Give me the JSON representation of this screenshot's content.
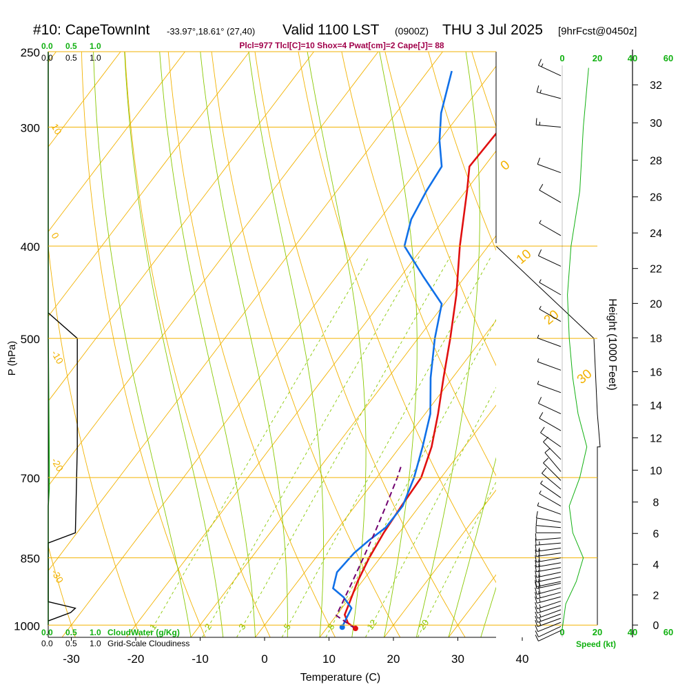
{
  "header": {
    "station": "#10: CapeTownInt",
    "coords": "-33.97°,18.61° (27,40)",
    "valid": "Valid 1100 LST",
    "utc": "(0900Z)",
    "date": "THU 3 Jul 2025",
    "forecast": "[9hrFcst@0450z]",
    "indices": "Plcl=977 Tlcl[C]=10 Shox=4 Pwat[cm]=2 Cape[J]= 88"
  },
  "axes": {
    "x_label": "Temperature (C)",
    "y_label": "P (hPa)",
    "height_label": "Height (1000 Feet)",
    "speed_label": "Speed (kt)",
    "cloudwater_label": "CloudWater (g/Kg)",
    "cloudiness_label": "Grid-Scale Cloudiness"
  },
  "colors": {
    "isobar": "#f2b200",
    "dry_adiabat": "#f2b200",
    "moist_adiabat": "#88c800",
    "mixing_ratio": "#88c800",
    "temperature": "#e01010",
    "dewpoint": "#1070e8",
    "parcel": "#700070",
    "cloudwater": "#10b010",
    "wind": "#000000",
    "indices_text": "#a0004a",
    "speed_text": "#10b010"
  },
  "chart_data": {
    "type": "line",
    "x_axis": {
      "scale": "skew-T",
      "ticks": [
        -30,
        -20,
        -10,
        0,
        10,
        20,
        30,
        40
      ],
      "range": [
        -34,
        37
      ]
    },
    "y_axis": {
      "scale": "log",
      "ticks": [
        250,
        300,
        400,
        500,
        700,
        850,
        1000
      ],
      "range": [
        250,
        1030
      ]
    },
    "height_axis": {
      "ticks": [
        0,
        2,
        4,
        6,
        8,
        10,
        12,
        14,
        16,
        18,
        20,
        22,
        24,
        26,
        28,
        30,
        32
      ]
    },
    "cloud_axis_top": {
      "green": [
        "0.0",
        "0.5",
        "1.0"
      ],
      "black": [
        "0.0",
        "0.5",
        "1.0"
      ]
    },
    "cloud_axis_bottom": {
      "green": [
        "0.0",
        "0.5",
        "1.0"
      ],
      "black": [
        "0.0",
        "0.5",
        "1.0"
      ]
    },
    "speed_axis": {
      "ticks_top": [
        "0",
        "20",
        "40",
        "60"
      ],
      "ticks_bottom": [
        "0",
        "20",
        "40",
        "60"
      ]
    },
    "dry_adiabat_labels": [
      "10",
      "0",
      "-10",
      "-20",
      "-30"
    ],
    "dry_adiabat_right_labels": [
      "0",
      "10",
      "20",
      "30"
    ],
    "mixing_ratio_labels": [
      "1",
      "2",
      "3",
      "5",
      "8",
      "12",
      "20"
    ],
    "series": [
      {
        "name": "temperature",
        "points": [
          [
            1008,
            14.5
          ],
          [
            995,
            12.7
          ],
          [
            975,
            11.2
          ],
          [
            950,
            10.6
          ],
          [
            900,
            9.3
          ],
          [
            850,
            8.3
          ],
          [
            800,
            7.6
          ],
          [
            750,
            7.2
          ],
          [
            700,
            6.9
          ],
          [
            650,
            4.9
          ],
          [
            600,
            2.0
          ],
          [
            550,
            -1.4
          ],
          [
            500,
            -5.0
          ],
          [
            450,
            -9.2
          ],
          [
            400,
            -14.4
          ],
          [
            350,
            -19.8
          ],
          [
            330,
            -22.3
          ],
          [
            300,
            -22.0
          ],
          [
            280,
            -19.5
          ],
          [
            262,
            -17.5
          ]
        ]
      },
      {
        "name": "dewpoint",
        "points": [
          [
            1005,
            12.3
          ],
          [
            990,
            12.0
          ],
          [
            960,
            11.5
          ],
          [
            935,
            9.0
          ],
          [
            915,
            6.3
          ],
          [
            880,
            5.0
          ],
          [
            840,
            5.4
          ],
          [
            815,
            6.2
          ],
          [
            790,
            7.3
          ],
          [
            750,
            7.4
          ],
          [
            700,
            5.8
          ],
          [
            650,
            3.5
          ],
          [
            600,
            0.8
          ],
          [
            550,
            -3.4
          ],
          [
            500,
            -7.4
          ],
          [
            460,
            -10.4
          ],
          [
            430,
            -16.6
          ],
          [
            400,
            -23.0
          ],
          [
            375,
            -25.1
          ],
          [
            350,
            -26.1
          ],
          [
            330,
            -26.6
          ],
          [
            310,
            -30.0
          ],
          [
            290,
            -33.0
          ],
          [
            262,
            -36.3
          ]
        ]
      },
      {
        "name": "parcel",
        "points": [
          [
            1008,
            14.4
          ],
          [
            977,
            10.0
          ],
          [
            950,
            9.5
          ],
          [
            900,
            8.5
          ],
          [
            850,
            7.4
          ],
          [
            800,
            6.2
          ],
          [
            750,
            4.8
          ],
          [
            700,
            3.2
          ],
          [
            680,
            2.4
          ]
        ]
      }
    ],
    "cloud_water": [
      [
        1000,
        0.0
      ],
      [
        950,
        0.0
      ],
      [
        900,
        0.0
      ],
      [
        850,
        0.0
      ],
      [
        800,
        0.0
      ],
      [
        750,
        0.0
      ],
      [
        720,
        0.02
      ],
      [
        680,
        0.02
      ],
      [
        500,
        0.0
      ],
      [
        250,
        0.0
      ]
    ],
    "cloudiness": [
      [
        990,
        0.0
      ],
      [
        970,
        0.48
      ],
      [
        960,
        0.58
      ],
      [
        945,
        0.0
      ],
      [
        820,
        0.0
      ],
      [
        800,
        0.58
      ],
      [
        650,
        0.62
      ],
      [
        500,
        0.62
      ],
      [
        470,
        0.0
      ]
    ],
    "wind_speed": [
      [
        1010,
        0.0
      ],
      [
        980,
        1.0
      ],
      [
        950,
        2.0
      ],
      [
        900,
        8.0
      ],
      [
        850,
        12.0
      ],
      [
        800,
        6.0
      ],
      [
        750,
        4.0
      ],
      [
        700,
        10.0
      ],
      [
        650,
        14.0
      ],
      [
        600,
        9.0
      ],
      [
        550,
        6.0
      ],
      [
        500,
        4.0
      ],
      [
        450,
        3.0
      ],
      [
        400,
        5.0
      ],
      [
        350,
        10.0
      ],
      [
        300,
        12.0
      ],
      [
        260,
        15.0
      ]
    ],
    "wind_barbs": [
      {
        "p": 1020,
        "dir": 245,
        "spd": 11
      },
      {
        "p": 1010,
        "dir": 245,
        "spd": 11
      },
      {
        "p": 1000,
        "dir": 248,
        "spd": 12
      },
      {
        "p": 990,
        "dir": 250,
        "spd": 13
      },
      {
        "p": 980,
        "dir": 250,
        "spd": 14
      },
      {
        "p": 970,
        "dir": 250,
        "spd": 14
      },
      {
        "p": 960,
        "dir": 252,
        "spd": 15
      },
      {
        "p": 950,
        "dir": 252,
        "spd": 16
      },
      {
        "p": 940,
        "dir": 255,
        "spd": 17
      },
      {
        "p": 930,
        "dir": 255,
        "spd": 18
      },
      {
        "p": 920,
        "dir": 255,
        "spd": 18
      },
      {
        "p": 910,
        "dir": 258,
        "spd": 19
      },
      {
        "p": 900,
        "dir": 258,
        "spd": 20
      },
      {
        "p": 890,
        "dir": 258,
        "spd": 20
      },
      {
        "p": 880,
        "dir": 258,
        "spd": 21
      },
      {
        "p": 870,
        "dir": 260,
        "spd": 21
      },
      {
        "p": 860,
        "dir": 260,
        "spd": 22
      },
      {
        "p": 850,
        "dir": 260,
        "spd": 22
      },
      {
        "p": 840,
        "dir": 262,
        "spd": 20
      },
      {
        "p": 830,
        "dir": 262,
        "spd": 17
      },
      {
        "p": 820,
        "dir": 265,
        "spd": 14
      },
      {
        "p": 810,
        "dir": 265,
        "spd": 11
      },
      {
        "p": 800,
        "dir": 270,
        "spd": 10
      },
      {
        "p": 790,
        "dir": 275,
        "spd": 9
      },
      {
        "p": 780,
        "dir": 280,
        "spd": 8
      },
      {
        "p": 765,
        "dir": 290,
        "spd": 7
      },
      {
        "p": 750,
        "dir": 300,
        "spd": 7
      },
      {
        "p": 735,
        "dir": 305,
        "spd": 7
      },
      {
        "p": 720,
        "dir": 310,
        "spd": 8
      },
      {
        "p": 705,
        "dir": 315,
        "spd": 9
      },
      {
        "p": 690,
        "dir": 320,
        "spd": 10
      },
      {
        "p": 670,
        "dir": 315,
        "spd": 10
      },
      {
        "p": 650,
        "dir": 305,
        "spd": 11
      },
      {
        "p": 625,
        "dir": 300,
        "spd": 10
      },
      {
        "p": 600,
        "dir": 295,
        "spd": 9
      },
      {
        "p": 570,
        "dir": 290,
        "spd": 6
      },
      {
        "p": 540,
        "dir": 290,
        "spd": 4
      },
      {
        "p": 510,
        "dir": 290,
        "spd": 3
      },
      {
        "p": 480,
        "dir": 300,
        "spd": 3
      },
      {
        "p": 450,
        "dir": 300,
        "spd": 3
      },
      {
        "p": 420,
        "dir": 295,
        "spd": 8
      },
      {
        "p": 390,
        "dir": 300,
        "spd": 6
      },
      {
        "p": 360,
        "dir": 300,
        "spd": 9
      },
      {
        "p": 335,
        "dir": 290,
        "spd": 11
      },
      {
        "p": 300,
        "dir": 275,
        "spd": 15
      },
      {
        "p": 280,
        "dir": 285,
        "spd": 15
      },
      {
        "p": 265,
        "dir": 295,
        "spd": 14
      }
    ],
    "environment_outline": [
      [
        400,
        36.0
      ],
      [
        500,
        42.0
      ],
      [
        600,
        47.0
      ],
      [
        650,
        51.0
      ]
    ]
  }
}
